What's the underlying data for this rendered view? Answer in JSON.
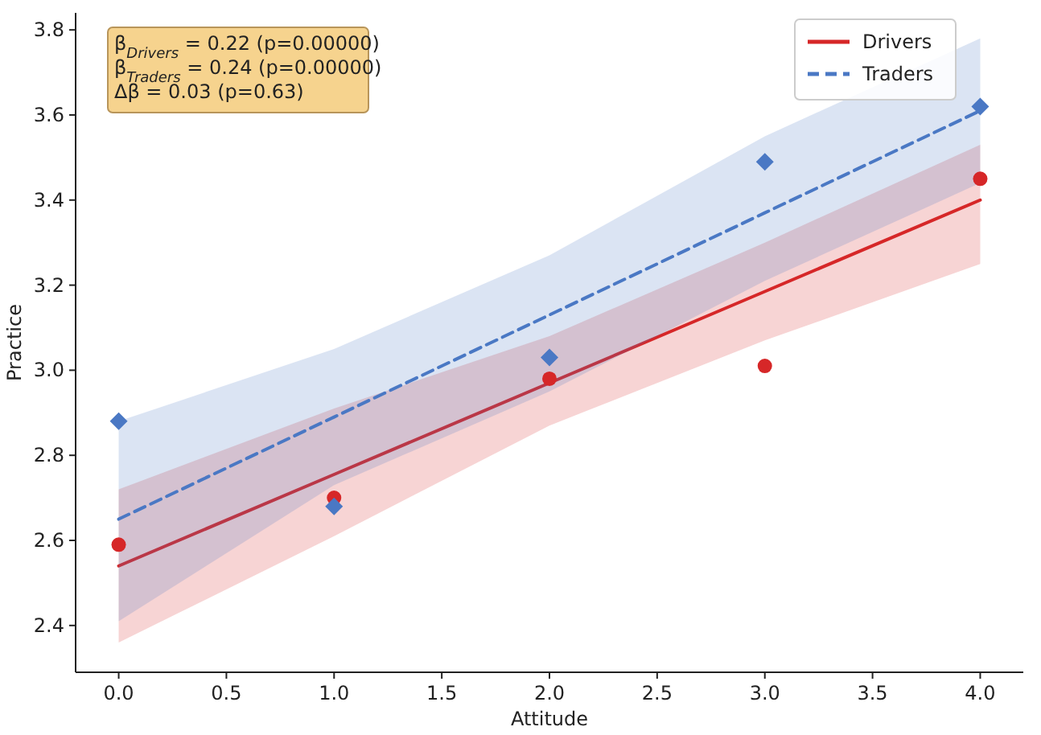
{
  "chart_data": {
    "type": "line",
    "xlabel": "Attitude",
    "ylabel": "Practice",
    "x": [
      0,
      1,
      2,
      3,
      4
    ],
    "xlim": [
      -0.2,
      4.2
    ],
    "ylim": [
      2.29,
      3.84
    ],
    "xticks": [
      {
        "value": 0,
        "label": "0.0"
      },
      {
        "value": 0.5,
        "label": "0.5"
      },
      {
        "value": 1,
        "label": "1.0"
      },
      {
        "value": 1.5,
        "label": "1.5"
      },
      {
        "value": 2,
        "label": "2.0"
      },
      {
        "value": 2.5,
        "label": "2.5"
      },
      {
        "value": 3,
        "label": "3.0"
      },
      {
        "value": 3.5,
        "label": "3.5"
      },
      {
        "value": 4,
        "label": "4.0"
      }
    ],
    "yticks": [
      {
        "value": 2.4,
        "label": "2.4"
      },
      {
        "value": 2.6,
        "label": "2.6"
      },
      {
        "value": 2.8,
        "label": "2.8"
      },
      {
        "value": 3.0,
        "label": "3.0"
      },
      {
        "value": 3.2,
        "label": "3.2"
      },
      {
        "value": 3.4,
        "label": "3.4"
      },
      {
        "value": 3.6,
        "label": "3.6"
      },
      {
        "value": 3.8,
        "label": "3.8"
      }
    ],
    "grid": false,
    "legend": "top right",
    "annotations": [
      "β$_{Drivers}$ = 0.22 (p=0.00000)",
      "β$_{Traders}$ = 0.24 (p=0.00000)",
      "Δβ = 0.03 (p=0.63)"
    ],
    "series": [
      {
        "name": "Drivers",
        "color": "#d62728",
        "line_style": "solid",
        "marker": "none",
        "values": [
          2.54,
          2.755,
          2.97,
          3.185,
          3.4
        ],
        "lower": [
          2.36,
          2.61,
          2.87,
          3.07,
          3.25
        ],
        "upper": [
          2.72,
          2.91,
          3.08,
          3.3,
          3.53
        ]
      },
      {
        "name": "Traders",
        "color": "#4a78c4",
        "line_style": "dashed",
        "marker": "none",
        "values": [
          2.65,
          2.89,
          3.13,
          3.37,
          3.61
        ],
        "lower": [
          2.41,
          2.73,
          2.95,
          3.21,
          3.44
        ],
        "upper": [
          2.88,
          3.05,
          3.27,
          3.55,
          3.78
        ]
      },
      {
        "type": "scatter",
        "color": "#d62728",
        "marker": "circle",
        "values": [
          2.59,
          2.7,
          2.98,
          3.01,
          3.45
        ]
      },
      {
        "type": "scatter",
        "color": "#4a78c4",
        "marker": "diamond",
        "values": [
          2.88,
          2.68,
          3.03,
          3.49,
          3.62
        ]
      }
    ]
  }
}
